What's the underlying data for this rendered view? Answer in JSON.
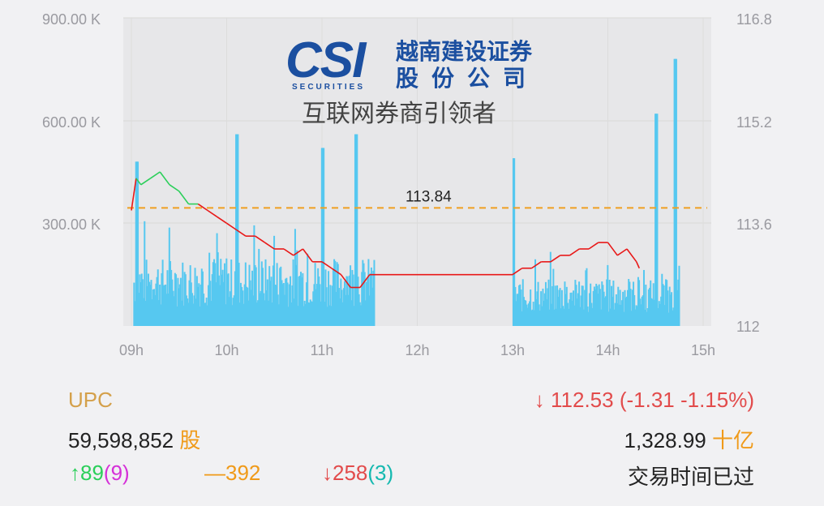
{
  "logo": {
    "mark_text": "CSI",
    "securities_text": "SECURITIES",
    "company_line1": "越南建设证券",
    "company_line2": "股份公司",
    "slogan": "互联网券商引领者"
  },
  "chart_data": {
    "type": "line+bar",
    "x_ticks": [
      "09h",
      "10h",
      "11h",
      "12h",
      "13h",
      "14h",
      "15h"
    ],
    "left_axis": {
      "ticks": [
        "900.00 K",
        "600.00 K",
        "300.00 K"
      ],
      "range": [
        0,
        900000
      ]
    },
    "right_axis": {
      "ticks": [
        "116.8",
        "115.2",
        "113.6",
        "112"
      ],
      "range": [
        112,
        116.8
      ]
    },
    "reference": {
      "value": 113.84,
      "label": "113.84"
    },
    "price_series": {
      "name": "",
      "x": [
        9.0,
        9.05,
        9.1,
        9.2,
        9.3,
        9.4,
        9.5,
        9.6,
        9.7,
        9.8,
        9.9,
        10.0,
        10.1,
        10.2,
        10.3,
        10.4,
        10.5,
        10.6,
        10.7,
        10.8,
        10.9,
        11.0,
        11.1,
        11.2,
        11.3,
        11.4,
        11.5,
        13.0,
        13.1,
        13.2,
        13.3,
        13.4,
        13.5,
        13.6,
        13.7,
        13.8,
        13.9,
        14.0,
        14.1,
        14.2,
        14.3,
        14.33
      ],
      "y": [
        113.8,
        114.3,
        114.2,
        114.3,
        114.4,
        114.2,
        114.1,
        113.9,
        113.9,
        113.8,
        113.7,
        113.6,
        113.5,
        113.4,
        113.4,
        113.3,
        113.2,
        113.2,
        113.1,
        113.2,
        113.0,
        113.0,
        112.9,
        112.8,
        112.6,
        112.6,
        112.8,
        112.8,
        112.9,
        112.9,
        113.0,
        113.0,
        113.1,
        113.1,
        113.2,
        113.2,
        113.3,
        113.3,
        113.1,
        113.2,
        113.0,
        112.9
      ],
      "up_color": "#2bcf5a",
      "down_color": "#e81818"
    },
    "volume_series": {
      "name": "",
      "color": "#56c8f0",
      "peaks": [
        [
          9.05,
          480000
        ],
        [
          10.1,
          560000
        ],
        [
          11.0,
          520000
        ],
        [
          11.35,
          560000
        ],
        [
          13.0,
          490000
        ],
        [
          14.5,
          620000
        ],
        [
          14.7,
          780000
        ]
      ]
    }
  },
  "info": {
    "ticker": "UPC",
    "price_arrow": "↓",
    "price_change": "112.53 (-1.31 -1.15%)",
    "volume_value": "59,598,852",
    "volume_unit": "股",
    "value_amount": "1,328.99",
    "value_unit": "十亿",
    "up_arrow": "↑",
    "up_count": "89",
    "up_ceiling": "(9)",
    "flat_mark": "—",
    "flat_count": "392",
    "down_arrow": "↓",
    "down_count": "258",
    "down_floor": "(3)",
    "status": "交易时间已过"
  }
}
